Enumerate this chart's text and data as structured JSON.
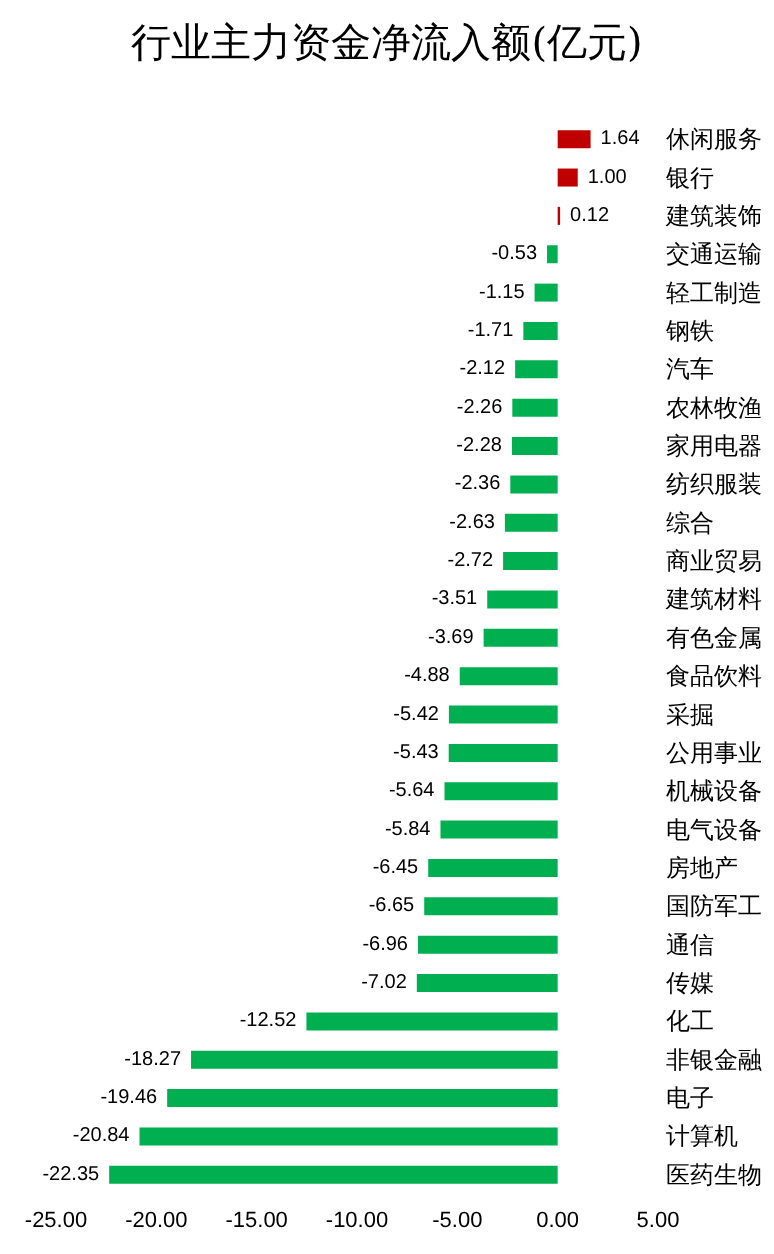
{
  "chart_data": {
    "type": "bar",
    "orientation": "horizontal",
    "title": "行业主力资金净流入额(亿元)",
    "categories": [
      "休闲服务",
      "银行",
      "建筑装饰",
      "交通运输",
      "轻工制造",
      "钢铁",
      "汽车",
      "农林牧渔",
      "家用电器",
      "纺织服装",
      "综合",
      "商业贸易",
      "建筑材料",
      "有色金属",
      "食品饮料",
      "采掘",
      "公用事业",
      "机械设备",
      "电气设备",
      "房地产",
      "国防军工",
      "通信",
      "传媒",
      "化工",
      "非银金融",
      "电子",
      "计算机",
      "医药生物"
    ],
    "values": [
      1.64,
      1.0,
      0.12,
      -0.53,
      -1.15,
      -1.71,
      -2.12,
      -2.26,
      -2.28,
      -2.36,
      -2.63,
      -2.72,
      -3.51,
      -3.69,
      -4.88,
      -5.42,
      -5.43,
      -5.64,
      -5.84,
      -6.45,
      -6.65,
      -6.96,
      -7.02,
      -12.52,
      -18.27,
      -19.46,
      -20.84,
      -22.35
    ],
    "value_labels": [
      "1.64",
      "1.00",
      "0.12",
      "-0.53",
      "-1.15",
      "-1.71",
      "-2.12",
      "-2.26",
      "-2.28",
      "-2.36",
      "-2.63",
      "-2.72",
      "-3.51",
      "-3.69",
      "-4.88",
      "-5.42",
      "-5.43",
      "-5.64",
      "-5.84",
      "-6.45",
      "-6.65",
      "-6.96",
      "-7.02",
      "-12.52",
      "-18.27",
      "-19.46",
      "-20.84",
      "-22.35"
    ],
    "colors": [
      "#c00000",
      "#c00000",
      "#c00000",
      "#00b050",
      "#00b050",
      "#00b050",
      "#00b050",
      "#00b050",
      "#00b050",
      "#00b050",
      "#00b050",
      "#00b050",
      "#00b050",
      "#00b050",
      "#00b050",
      "#00b050",
      "#00b050",
      "#00b050",
      "#00b050",
      "#00b050",
      "#00b050",
      "#00b050",
      "#00b050",
      "#00b050",
      "#00b050",
      "#00b050",
      "#00b050",
      "#00b050"
    ],
    "xlim": [
      -25,
      5
    ],
    "xticks": [
      {
        "value": -25,
        "label": "-25.00"
      },
      {
        "value": -20,
        "label": "-20.00"
      },
      {
        "value": -15,
        "label": "-15.00"
      },
      {
        "value": -10,
        "label": "-10.00"
      },
      {
        "value": -5,
        "label": "-5.00"
      },
      {
        "value": 0,
        "label": "0.00"
      },
      {
        "value": 5,
        "label": "5.00"
      }
    ],
    "grid": false
  }
}
